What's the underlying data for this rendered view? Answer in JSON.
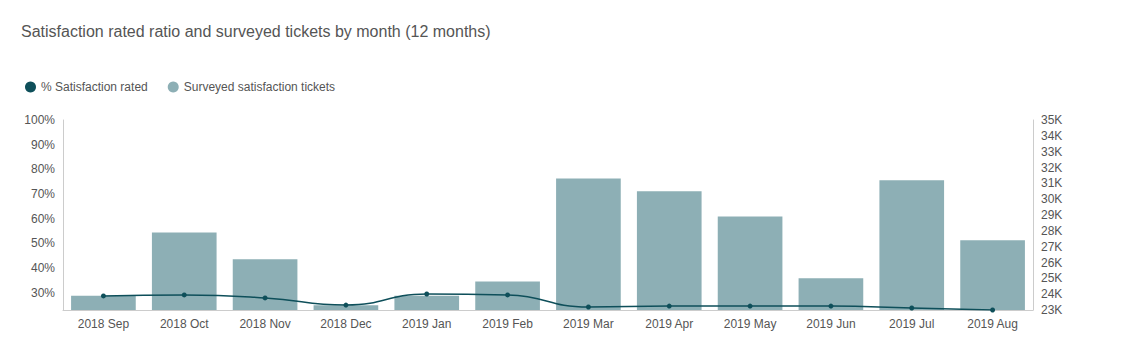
{
  "chart_data": {
    "type": "bar",
    "title": "Satisfaction rated ratio and surveyed tickets by month (12 months)",
    "categories": [
      "2018 Sep",
      "2018 Oct",
      "2018 Nov",
      "2018 Dec",
      "2019 Jan",
      "2019 Feb",
      "2019 Mar",
      "2019 Apr",
      "2019 May",
      "2019 Jun",
      "2019 Jul",
      "2019 Aug"
    ],
    "series": [
      {
        "name": "% Satisfaction rated",
        "type": "line",
        "color": "#0e4f5a",
        "marker": "circle",
        "line_style": "smooth",
        "values": [
          28.7,
          29.1,
          27.9,
          25.0,
          29.5,
          29.1,
          24.2,
          24.6,
          24.6,
          24.6,
          23.8,
          23.0
        ]
      },
      {
        "name": "Surveyed satisfaction tickets",
        "type": "bar",
        "color": "#8dafb5",
        "axis": "y2",
        "values": [
          23900,
          27900,
          26200,
          23300,
          23900,
          24800,
          31300,
          30500,
          28900,
          25000,
          31200,
          27400
        ]
      }
    ],
    "ylim": [
      23,
      100
    ],
    "yticks": [
      {
        "value": 30,
        "label": "30%"
      },
      {
        "value": 40,
        "label": "40%"
      },
      {
        "value": 50,
        "label": "50%"
      },
      {
        "value": 60,
        "label": "60%"
      },
      {
        "value": 70,
        "label": "70%"
      },
      {
        "value": 80,
        "label": "80%"
      },
      {
        "value": 90,
        "label": "90%"
      },
      {
        "value": 100,
        "label": "100%"
      }
    ],
    "y2lim": [
      23000,
      35000
    ],
    "y2ticks": [
      {
        "value": 23000,
        "label": "23K"
      },
      {
        "value": 24000,
        "label": "24K"
      },
      {
        "value": 25000,
        "label": "25K"
      },
      {
        "value": 26000,
        "label": "26K"
      },
      {
        "value": 27000,
        "label": "27K"
      },
      {
        "value": 28000,
        "label": "28K"
      },
      {
        "value": 29000,
        "label": "29K"
      },
      {
        "value": 30000,
        "label": "30K"
      },
      {
        "value": 31000,
        "label": "31K"
      },
      {
        "value": 32000,
        "label": "32K"
      },
      {
        "value": 33000,
        "label": "33K"
      },
      {
        "value": 34000,
        "label": "34K"
      },
      {
        "value": 35000,
        "label": "35K"
      }
    ],
    "grid": false,
    "legend": "top-left"
  }
}
